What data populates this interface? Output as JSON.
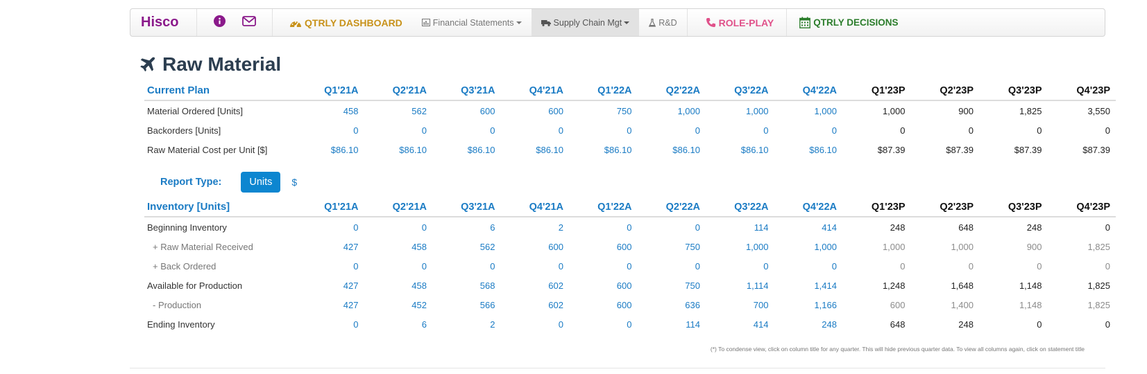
{
  "nav": {
    "brand": "Hisco",
    "info_icon": "info-circle-icon",
    "mail_icon": "envelope-icon",
    "dashboard": "QTRLY DASHBOARD",
    "financial": "Financial Statements",
    "supply_chain": "Supply Chain Mgt",
    "rd": "R&D",
    "role_play": "ROLE-PLAY",
    "decisions": "QTRLY DECISIONS",
    "colors": {
      "brand": "#8b1a8b",
      "dashboard": "#c8921a",
      "role_play": "#e0518a",
      "decisions": "#2b7d2b",
      "accent": "#1a7bc4"
    }
  },
  "page_title": "Raw Material",
  "quarters": [
    "Q1'21A",
    "Q2'21A",
    "Q3'21A",
    "Q4'21A",
    "Q1'22A",
    "Q2'22A",
    "Q3'22A",
    "Q4'22A",
    "Q1'23P",
    "Q2'23P",
    "Q3'23P",
    "Q4'23P"
  ],
  "plan": {
    "title": "Current Plan",
    "rows": [
      {
        "label": "Material Ordered [Units]",
        "values": [
          "458",
          "562",
          "600",
          "600",
          "750",
          "1,000",
          "1,000",
          "1,000",
          "1,000",
          "900",
          "1,825",
          "3,550"
        ]
      },
      {
        "label": "Backorders [Units]",
        "values": [
          "0",
          "0",
          "0",
          "0",
          "0",
          "0",
          "0",
          "0",
          "0",
          "0",
          "0",
          "0"
        ]
      },
      {
        "label": "Raw Material Cost per Unit [$]",
        "values": [
          "$86.10",
          "$86.10",
          "$86.10",
          "$86.10",
          "$86.10",
          "$86.10",
          "$86.10",
          "$86.10",
          "$87.39",
          "$87.39",
          "$87.39",
          "$87.39"
        ]
      }
    ]
  },
  "report_type": {
    "label": "Report Type:",
    "units_button": "Units",
    "dollar_button": "$"
  },
  "inventory": {
    "title": "Inventory [Units]",
    "rows": [
      {
        "label": "Beginning Inventory",
        "sub": false,
        "values": [
          "0",
          "0",
          "6",
          "2",
          "0",
          "0",
          "114",
          "414",
          "248",
          "648",
          "248",
          "0"
        ]
      },
      {
        "label": "+ Raw Material Received",
        "sub": true,
        "values": [
          "427",
          "458",
          "562",
          "600",
          "600",
          "750",
          "1,000",
          "1,000",
          "1,000",
          "1,000",
          "900",
          "1,825"
        ]
      },
      {
        "label": "+ Back Ordered",
        "sub": true,
        "values": [
          "0",
          "0",
          "0",
          "0",
          "0",
          "0",
          "0",
          "0",
          "0",
          "0",
          "0",
          "0"
        ]
      },
      {
        "label": "Available for Production",
        "sub": false,
        "values": [
          "427",
          "458",
          "568",
          "602",
          "600",
          "750",
          "1,114",
          "1,414",
          "1,248",
          "1,648",
          "1,148",
          "1,825"
        ]
      },
      {
        "label": "- Production",
        "sub": true,
        "values": [
          "427",
          "452",
          "566",
          "602",
          "600",
          "636",
          "700",
          "1,166",
          "600",
          "1,400",
          "1,148",
          "1,825"
        ]
      },
      {
        "label": "Ending Inventory",
        "sub": false,
        "values": [
          "0",
          "6",
          "2",
          "0",
          "0",
          "114",
          "414",
          "248",
          "648",
          "248",
          "0",
          "0"
        ]
      }
    ]
  },
  "footnote": "(*) To condense view, click on column title for any quarter. This will hide previous quarter data. To view all columns again, click on statement title"
}
